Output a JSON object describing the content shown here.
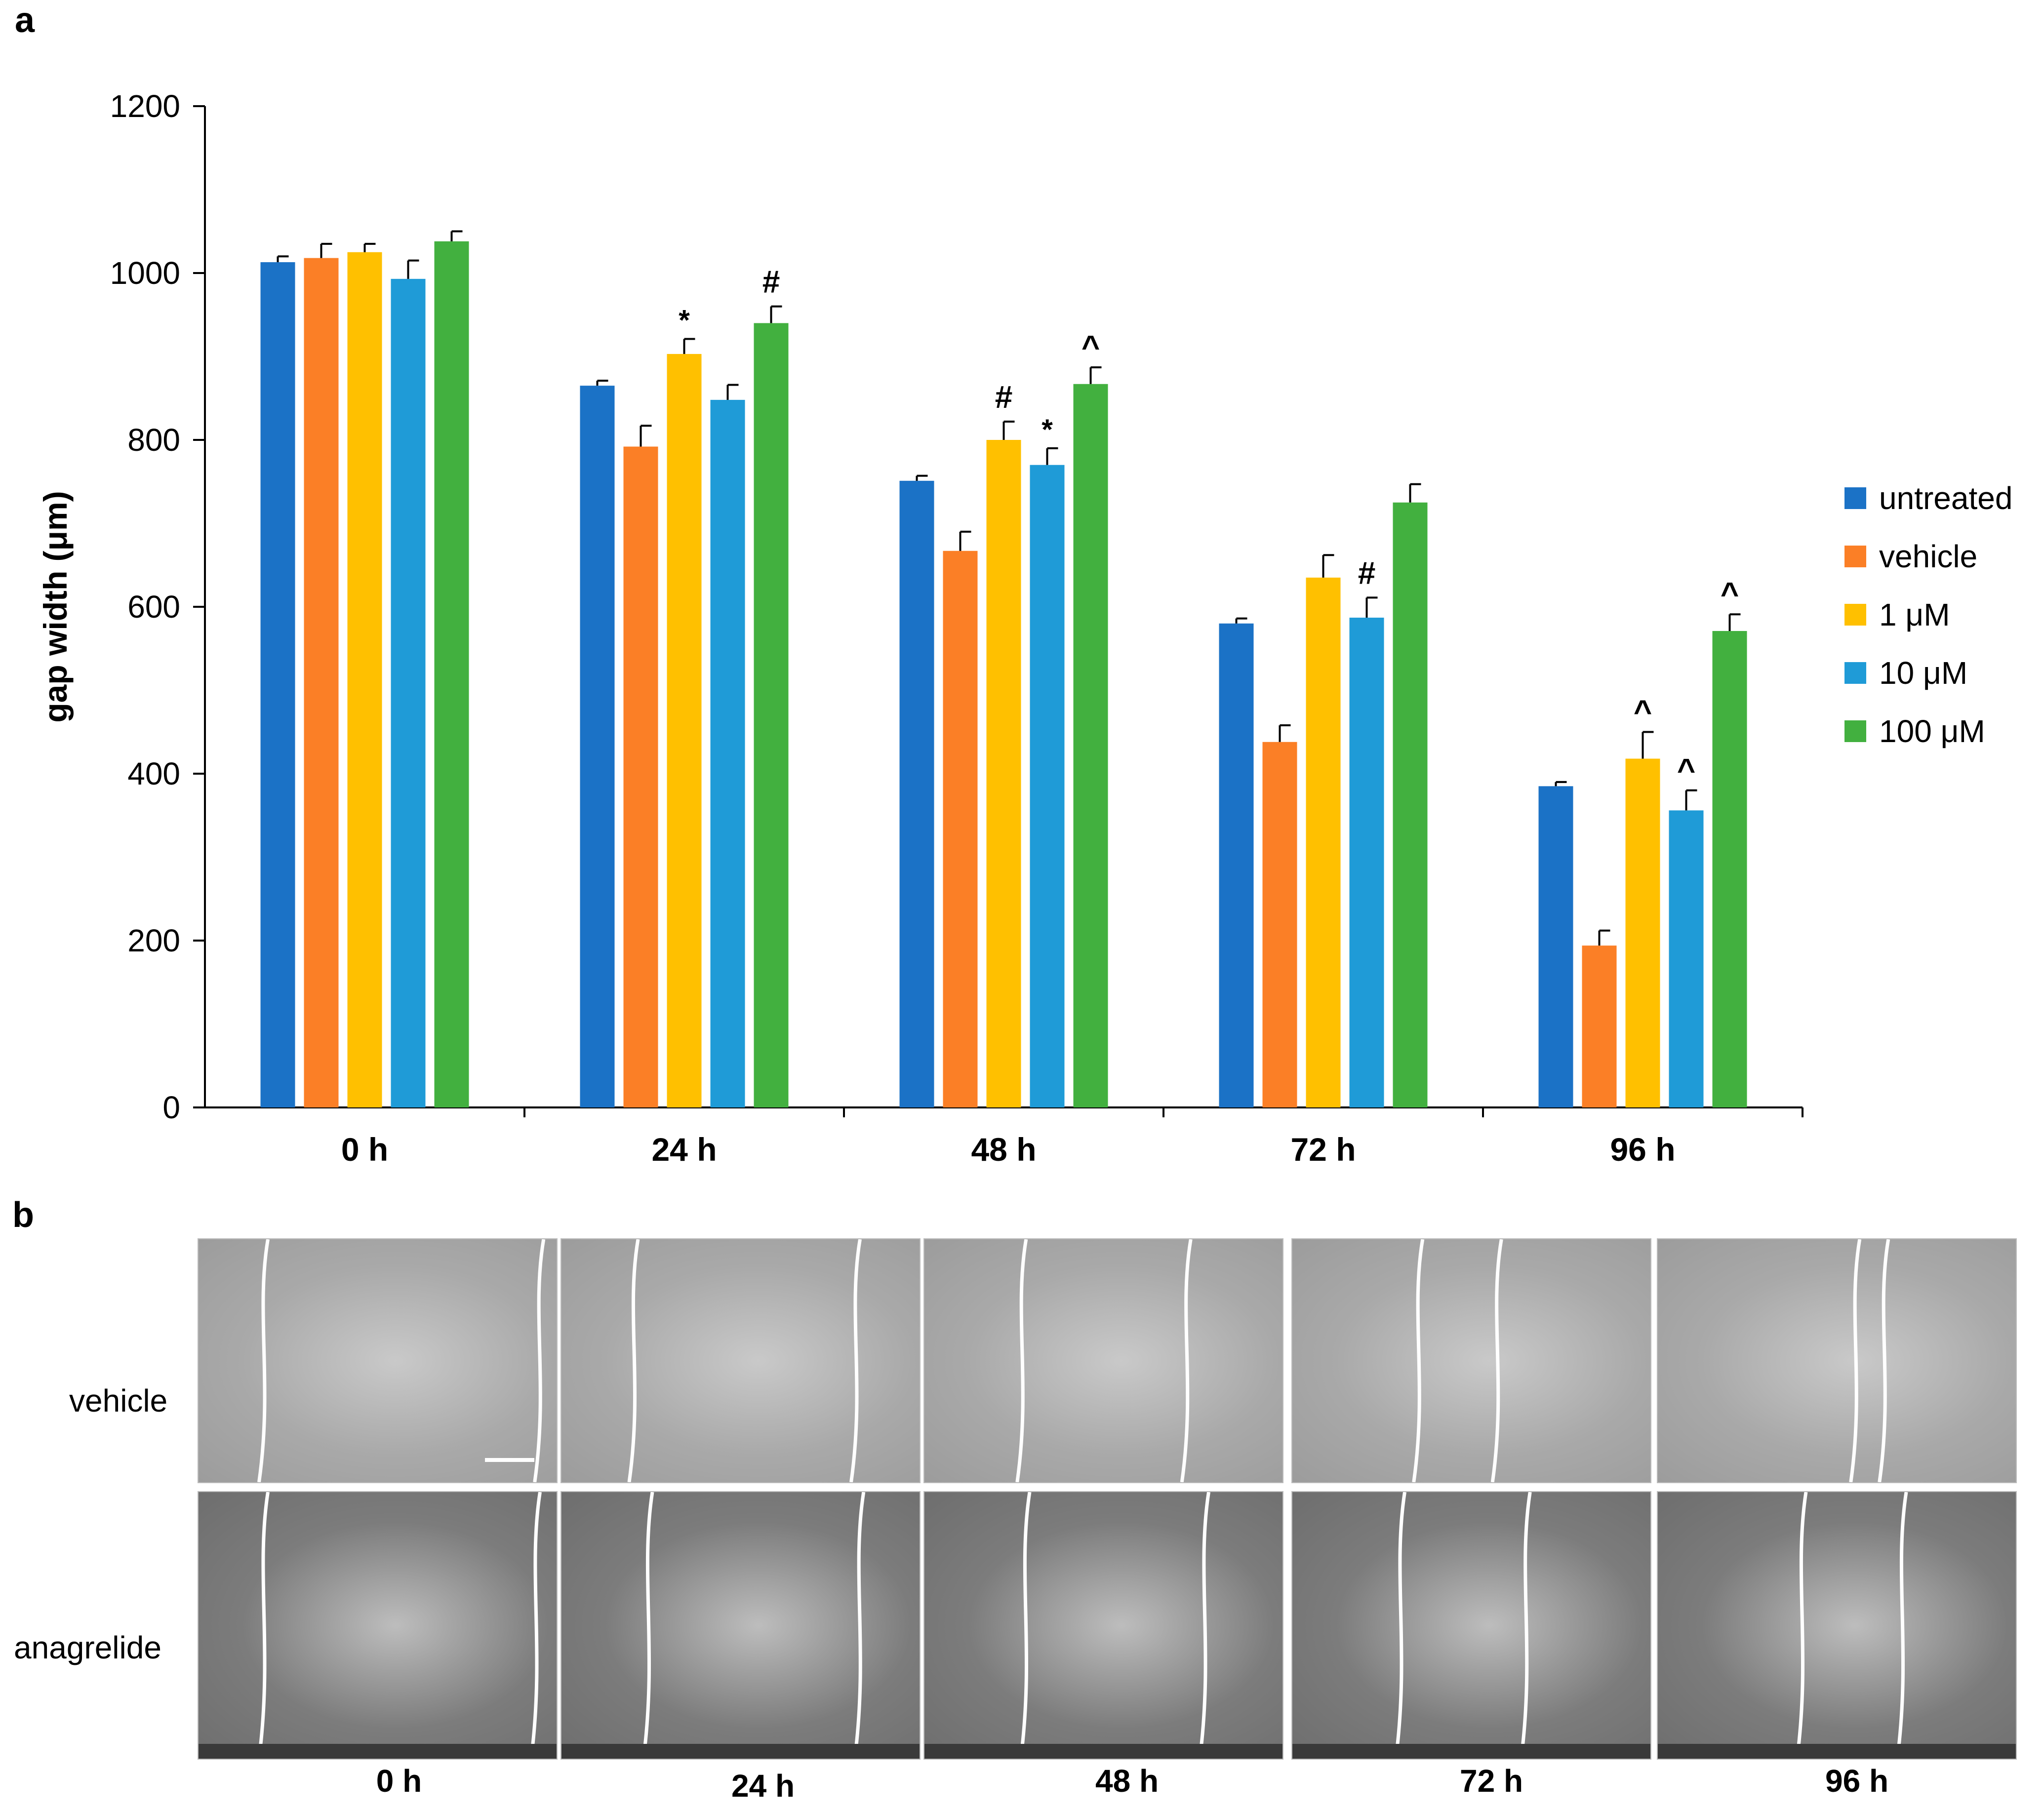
{
  "panel_a_label": "a",
  "panel_b_label": "b",
  "colors": {
    "untreated": "#1b72c6",
    "vehicle": "#fb7f26",
    "1uM": "#ffc000",
    "10uM": "#1f9bd7",
    "100uM": "#42b03f"
  },
  "chart_data": {
    "type": "bar",
    "title": "",
    "xlabel": "",
    "ylabel": "gap width (μm)",
    "ylim": [
      0,
      1200
    ],
    "yticks": [
      0,
      200,
      400,
      600,
      800,
      1000,
      1200
    ],
    "categories": [
      "0 h",
      "24 h",
      "48 h",
      "72 h",
      "96 h"
    ],
    "legend_position": "right",
    "series": [
      {
        "name": "untreated",
        "color_key": "untreated",
        "values": [
          1013,
          865,
          751,
          580,
          385
        ],
        "errors": [
          7,
          6,
          6,
          6,
          5
        ],
        "annotations": [
          "",
          "",
          "",
          "",
          ""
        ]
      },
      {
        "name": "vehicle",
        "color_key": "vehicle",
        "values": [
          1018,
          792,
          667,
          438,
          194
        ],
        "errors": [
          17,
          25,
          23,
          20,
          18
        ],
        "annotations": [
          "",
          "",
          "",
          "",
          ""
        ]
      },
      {
        "name": "1 μM",
        "color_key": "1uM",
        "values": [
          1025,
          903,
          800,
          635,
          418
        ],
        "errors": [
          10,
          18,
          22,
          27,
          32
        ],
        "annotations": [
          "",
          "*",
          "#",
          "",
          "^"
        ]
      },
      {
        "name": "10 μM",
        "color_key": "10uM",
        "values": [
          993,
          848,
          770,
          587,
          356
        ],
        "errors": [
          22,
          18,
          20,
          24,
          24
        ],
        "annotations": [
          "",
          "",
          "*",
          "#",
          "^"
        ]
      },
      {
        "name": "100 μM",
        "color_key": "100uM",
        "values": [
          1038,
          940,
          867,
          725,
          571
        ],
        "errors": [
          12,
          20,
          20,
          22,
          20
        ],
        "annotations": [
          "",
          "#",
          "^",
          "",
          "^"
        ]
      }
    ]
  },
  "panel_b": {
    "row_labels": [
      "vehicle",
      "anagrelide"
    ],
    "time_labels": [
      "0 h",
      "24 h",
      "48 h",
      "72 h",
      "96 h"
    ]
  }
}
